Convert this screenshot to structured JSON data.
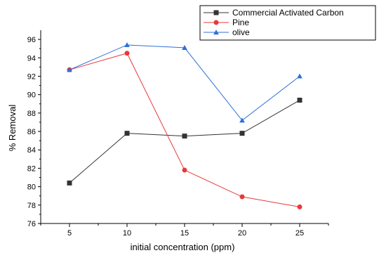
{
  "chart_data": {
    "type": "line",
    "title": "",
    "xlabel": "initial concentration (ppm)",
    "ylabel": "% Removal",
    "x": [
      5,
      10,
      15,
      20,
      25
    ],
    "xlim": [
      2.5,
      27.5
    ],
    "ylim": [
      76,
      97
    ],
    "xticks": [
      5,
      10,
      15,
      20,
      25
    ],
    "yticks": [
      76,
      78,
      80,
      82,
      84,
      86,
      88,
      90,
      92,
      94,
      96
    ],
    "grid": false,
    "legend_position": "top-right",
    "series": [
      {
        "name": "Commercial Activated Carbon",
        "color": "#333333",
        "marker": "square",
        "values": [
          80.4,
          85.8,
          85.5,
          85.8,
          89.4
        ]
      },
      {
        "name": "Pine",
        "color": "#e8393a",
        "marker": "circle",
        "values": [
          92.7,
          94.5,
          81.8,
          78.9,
          77.8
        ]
      },
      {
        "name": "olive",
        "color": "#2f6fd6",
        "marker": "triangle",
        "values": [
          92.7,
          95.4,
          95.1,
          87.2,
          92.0
        ]
      }
    ]
  }
}
